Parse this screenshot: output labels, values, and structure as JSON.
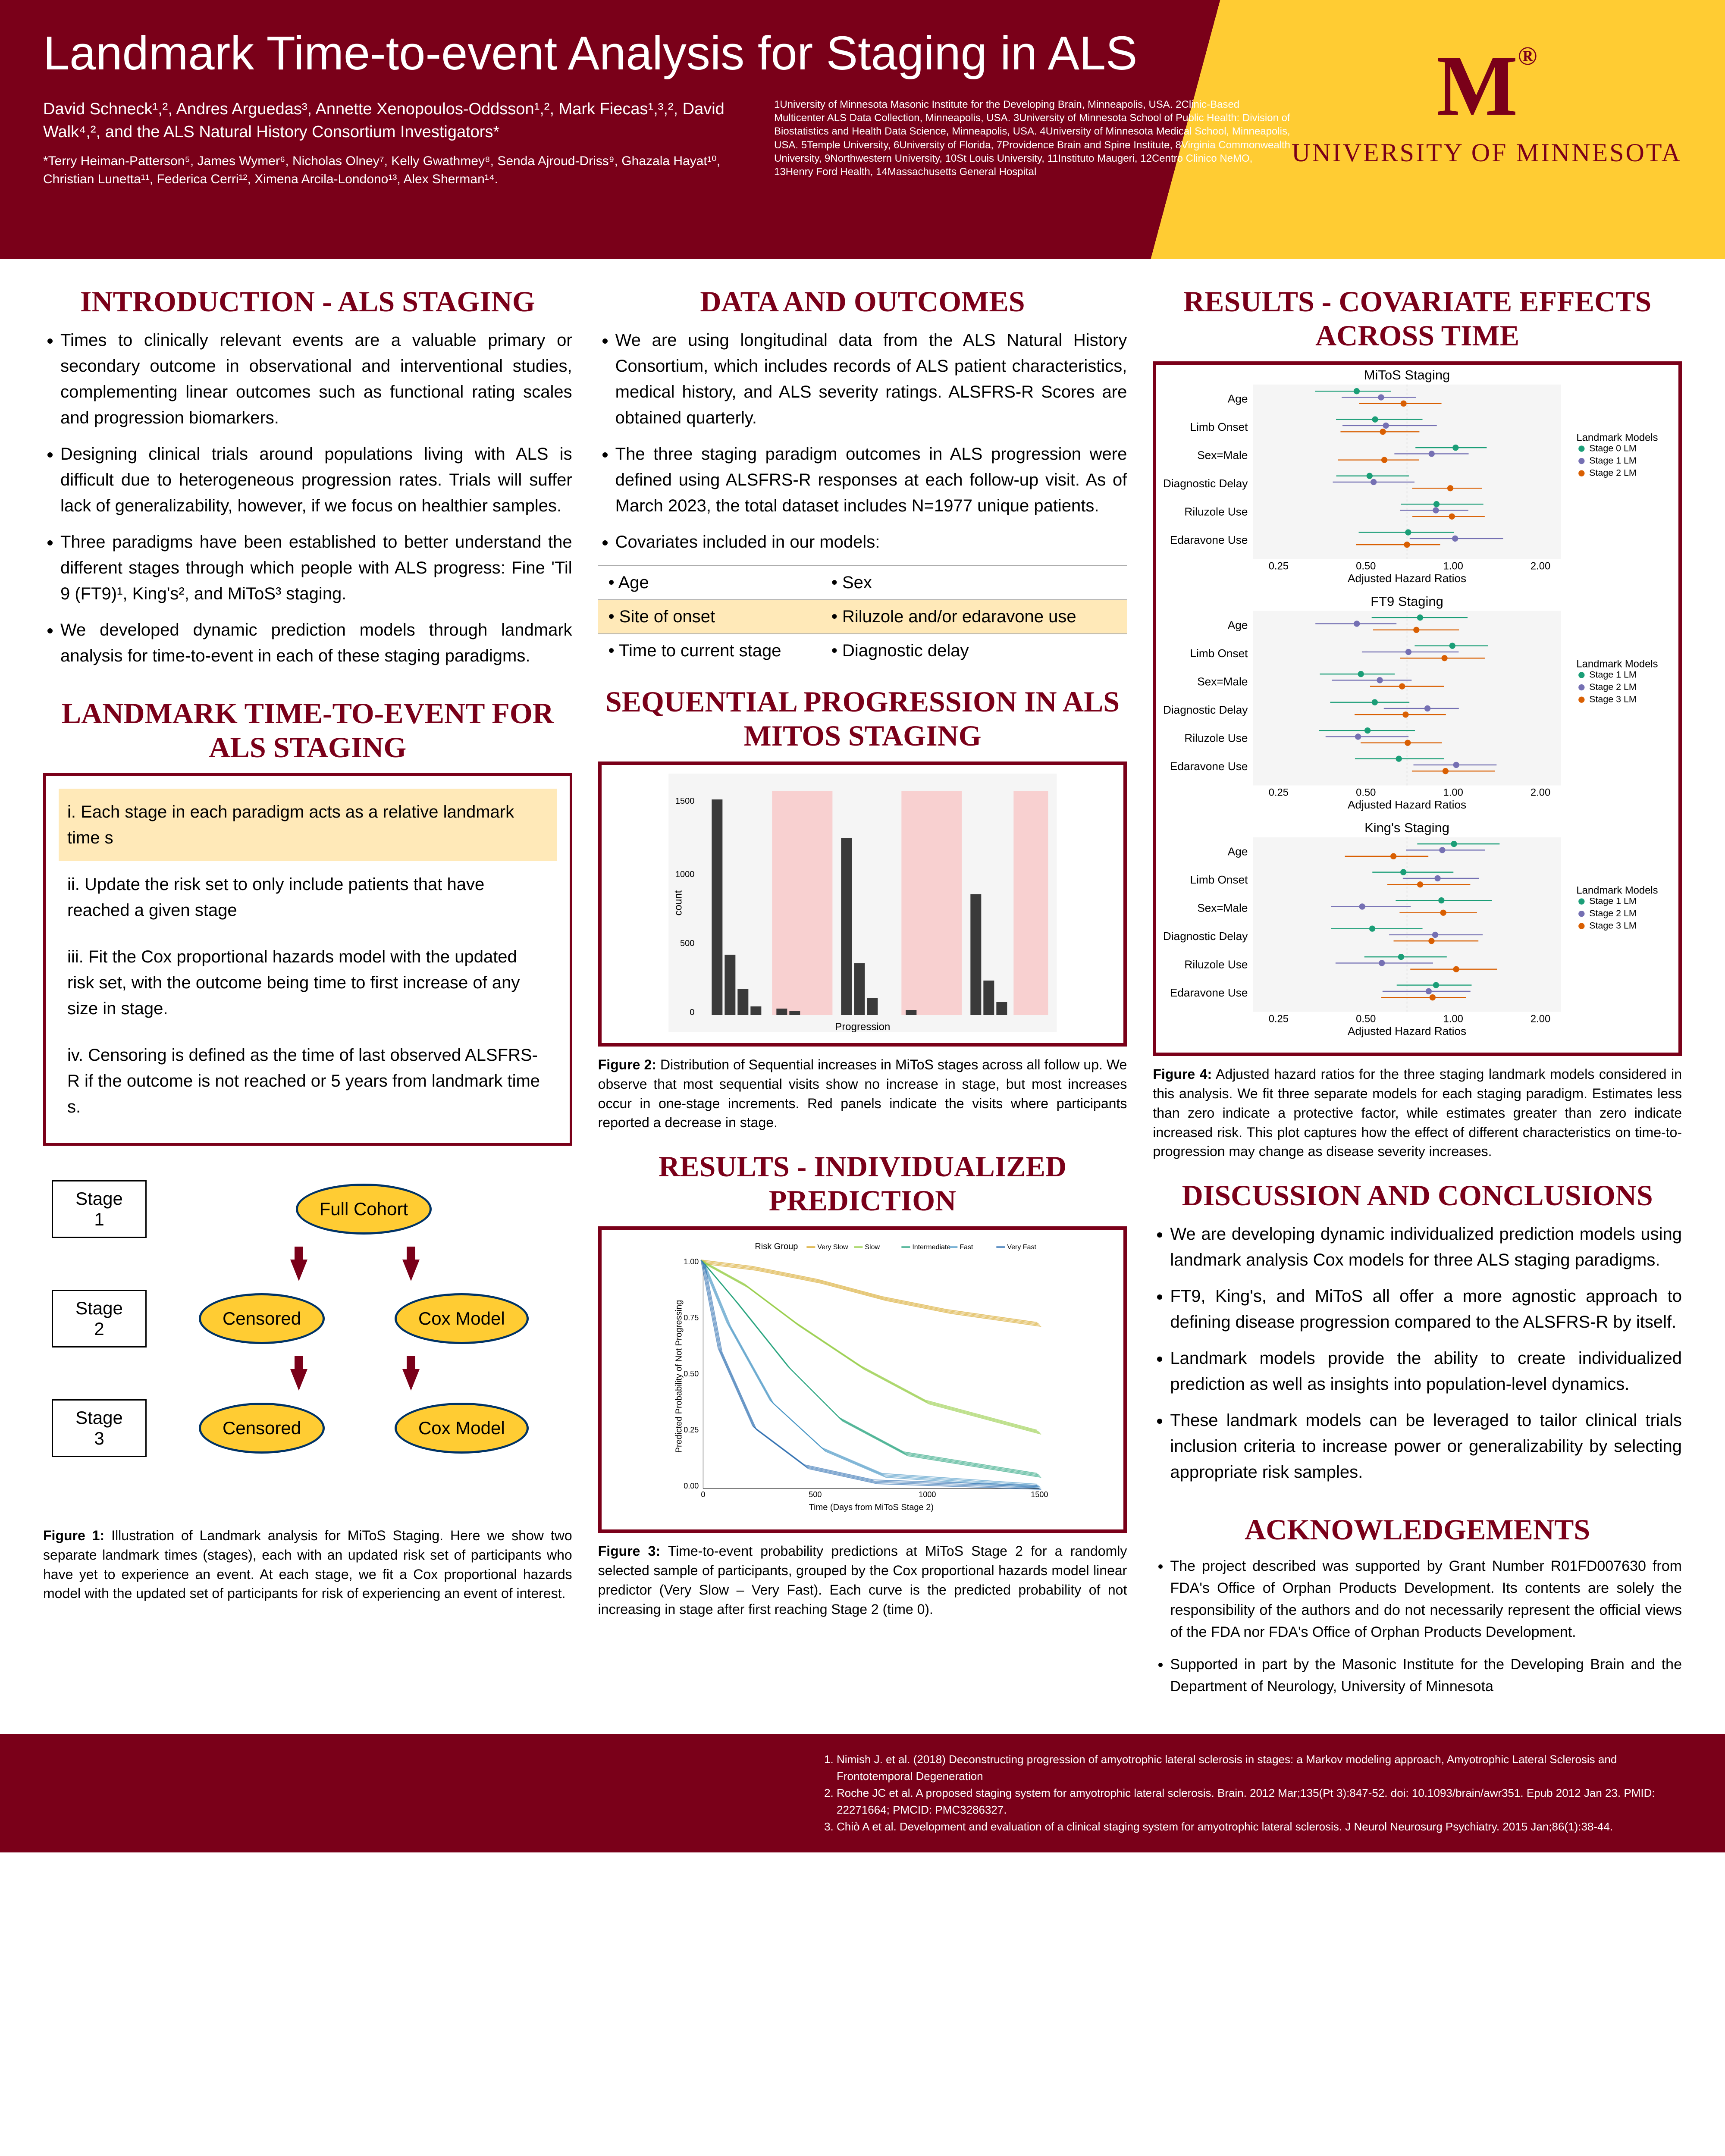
{
  "header": {
    "title": "Landmark Time-to-event Analysis for Staging in ALS",
    "authors": "David Schneck¹,², Andres Arguedas³, Annette Xenopoulos-Oddsson¹,², Mark Fiecas¹,³,², David Walk⁴,², and the ALS Natural History Consortium Investigators*",
    "consortium": "*Terry Heiman-Patterson⁵, James Wymer⁶, Nicholas Olney⁷, Kelly Gwathmey⁸, Senda Ajroud-Driss⁹, Ghazala Hayat¹⁰, Christian Lunetta¹¹, Federica Cerri¹², Ximena Arcila-Londono¹³, Alex Sherman¹⁴.",
    "affiliations": "1University of Minnesota Masonic Institute for the Developing Brain, Minneapolis, USA. 2Clinic-Based Multicenter ALS Data Collection, Minneapolis, USA. 3University of Minnesota School of Public Health: Division of Biostatistics and Health Data Science, Minneapolis, USA. 4University of Minnesota Medical School, Minneapolis, USA. 5Temple University, 6University of Florida, 7Providence Brain and Spine Institute, 8Virginia Commonwealth University, 9Northwestern University, 10St Louis University, 11Instituto Maugeri, 12Centro Clinico NeMO, 13Henry Ford Health, 14Massachusetts General Hospital",
    "logo_text": "UNIVERSITY OF MINNESOTA"
  },
  "sections": {
    "intro_title": "INTRODUCTION - ALS STAGING",
    "intro_bullets": [
      "Times to clinically relevant events are a valuable primary or secondary outcome in observational and interventional studies, complementing linear outcomes such as functional rating scales and progression biomarkers.",
      "Designing clinical trials around populations living with ALS is difficult due to heterogeneous progression rates. Trials will suffer lack of generalizability, however, if we focus on healthier samples.",
      "Three paradigms have been established to better understand the different stages through which people with ALS progress: Fine 'Til 9 (FT9)¹, King's², and MiToS³ staging.",
      "We developed dynamic prediction models through landmark analysis for time-to-event in each of these staging paradigms."
    ],
    "landmark_title": "LANDMARK TIME-TO-EVENT FOR ALS STAGING",
    "landmark_steps": [
      "i.   Each stage in each paradigm acts as a relative landmark time s",
      "ii.  Update the risk set to only include patients that have reached a given stage",
      "iii. Fit the Cox proportional hazards model with the updated risk set, with the outcome being time to first increase of any size in stage.",
      "iv. Censoring is defined as the time of last observed ALSFRS-R if the outcome is not reached or 5 years from landmark time s."
    ],
    "flowchart": {
      "stages": [
        "Stage 1",
        "Stage 2",
        "Stage 3"
      ],
      "nodes": [
        "Full Cohort",
        "Censored",
        "Cox Model",
        "Censored",
        "Cox Model"
      ]
    },
    "fig1_caption": "Figure 1: Illustration of Landmark analysis for MiToS Staging. Here we show two separate landmark times (stages), each with an updated risk set of participants who have yet to experience an event. At each stage, we fit a Cox proportional hazards model with the updated set of participants for risk of experiencing an event of interest.",
    "data_title": "DATA AND OUTCOMES",
    "data_bullets": [
      "We are using longitudinal data from the ALS Natural History Consortium, which includes records of ALS patient characteristics, medical history, and ALS severity ratings. ALSFRS-R Scores are obtained quarterly.",
      "The three staging paradigm outcomes in ALS progression were defined using ALSFRS-R responses at each follow-up visit. As of March 2023, the total dataset includes N=1977 unique patients.",
      "Covariates included in our models:"
    ],
    "covariates": [
      [
        "Age",
        "Sex"
      ],
      [
        "Site of onset",
        "Riluzole and/or edaravone use"
      ],
      [
        "Time to current stage",
        "Diagnostic delay"
      ]
    ],
    "seq_title": "SEQUENTIAL PROGRESSION IN ALS MITOS STAGING",
    "fig2_caption": "Figure 2: Distribution of Sequential increases in MiToS stages across all follow up. We observe that most sequential visits show no increase in stage, but most increases occur in one-stage increments. Red panels indicate the visits where participants reported a decrease in stage.",
    "pred_title": "RESULTS - INDIVIDUALIZED PREDICTION",
    "fig3_caption": "Figure 3: Time-to-event probability predictions at MiToS Stage 2 for a randomly selected sample of participants, grouped by the Cox proportional hazards model linear predictor (Very Slow – Very Fast). Each curve is the predicted probability of not increasing in stage after first reaching Stage 2 (time 0).",
    "results_title": "RESULTS - COVARIATE EFFECTS ACROSS TIME",
    "forest_charts": [
      {
        "title": "MiToS Staging",
        "legend": [
          "Stage 0 LM",
          "Stage 1 LM",
          "Stage 2 LM"
        ]
      },
      {
        "title": "FT9 Staging",
        "legend": [
          "Stage 1 LM",
          "Stage 2 LM",
          "Stage 3 LM"
        ]
      },
      {
        "title": "King's Staging",
        "legend": [
          "Stage 1 LM",
          "Stage 2 LM",
          "Stage 3 LM"
        ]
      }
    ],
    "forest_labels": [
      "Age",
      "Limb Onset",
      "Sex=Male",
      "Diagnostic Delay",
      "Riluzole Use",
      "Edaravone Use"
    ],
    "forest_xaxis": "Adjusted Hazard Ratios",
    "forest_ticks": [
      "0.25",
      "0.50",
      "1.00",
      "2.00"
    ],
    "forest_colors": [
      "#1b9e77",
      "#7570b3",
      "#d95f02"
    ],
    "fig4_caption": "Figure 4: Adjusted hazard ratios for the three staging landmark models considered in this analysis. We fit three separate models for each staging paradigm. Estimates less than zero indicate a protective factor, while estimates greater than zero indicate increased risk. This plot captures how the effect of different characteristics on time-to-progression may change as disease severity increases.",
    "discussion_title": "DISCUSSION AND CONCLUSIONS",
    "discussion_bullets": [
      "We are developing dynamic individualized prediction models using landmark analysis Cox models for three ALS staging paradigms.",
      "FT9, King's, and MiToS all offer a more agnostic approach to defining disease progression compared to the ALSFRS-R by itself.",
      "Landmark models provide the ability to create individualized prediction as well as insights into population-level dynamics.",
      "These landmark models can be leveraged to tailor clinical trials inclusion criteria to increase power or generalizability by selecting appropriate risk samples."
    ],
    "ack_title": "ACKNOWLEDGEMENTS",
    "ack_bullets": [
      "The project described was supported by Grant Number R01FD007630 from FDA's Office of Orphan Products Development. Its contents are solely the responsibility of the authors and do not necessarily represent the official views of the FDA nor FDA's Office of Orphan Products Development.",
      "Supported in part by the Masonic Institute for the Developing Brain and the Department of Neurology, University of Minnesota"
    ],
    "survival_legend": [
      "Very Slow",
      "Slow",
      "Intermediate",
      "Fast",
      "Very Fast"
    ],
    "survival_colors": [
      "#d4a017",
      "#8fc93a",
      "#1b9e77",
      "#4393c3",
      "#2166ac"
    ],
    "survival_xlabel": "Time (Days from MiToS Stage 2)",
    "survival_ylabel": "Predicted Probability of Not Progressing",
    "bar_ylabel": "count",
    "bar_xlabel": "Progression"
  },
  "footer": {
    "refs": [
      "Nimish J. et al. (2018) Deconstructing progression of amyotrophic lateral sclerosis in stages: a Markov modeling approach, Amyotrophic Lateral Sclerosis and Frontotemporal Degeneration",
      "Roche JC et al. A proposed staging system for amyotrophic lateral sclerosis. Brain. 2012 Mar;135(Pt 3):847-52. doi: 10.1093/brain/awr351. Epub 2012 Jan 23. PMID: 22271664; PMCID: PMC3286327.",
      "Chiò A et al. Development and evaluation of a clinical staging system for amyotrophic lateral sclerosis. J Neurol Neurosurg Psychiatry. 2015 Jan;86(1):38-44."
    ]
  },
  "colors": {
    "maroon": "#7a0019",
    "gold": "#ffcc33",
    "highlight": "#ffe9b8"
  }
}
